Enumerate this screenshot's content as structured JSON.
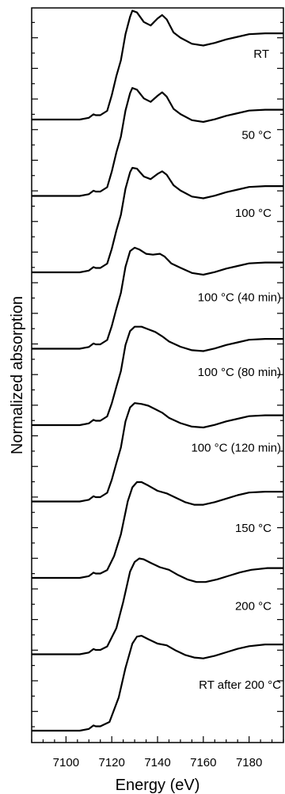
{
  "chart_data": {
    "type": "line",
    "xlabel": "Energy (eV)",
    "ylabel": "Normalized absorption",
    "xlim": [
      7085,
      7195
    ],
    "x_ticks": [
      7100,
      7120,
      7140,
      7160,
      7180
    ],
    "x_minor_step": 5,
    "vertical_offset": true,
    "grid": false,
    "legend": "none (labels placed on curves)",
    "line_color": "#000000",
    "series": [
      {
        "name": "RT",
        "points": [
          [
            7085,
            0.0
          ],
          [
            7106,
            0.0
          ],
          [
            7110,
            0.02
          ],
          [
            7112,
            0.06
          ],
          [
            7113,
            0.05
          ],
          [
            7115,
            0.05
          ],
          [
            7118,
            0.1
          ],
          [
            7120,
            0.28
          ],
          [
            7122,
            0.5
          ],
          [
            7124,
            0.68
          ],
          [
            7126,
            0.98
          ],
          [
            7128,
            1.18
          ],
          [
            7129,
            1.25
          ],
          [
            7131,
            1.23
          ],
          [
            7134,
            1.12
          ],
          [
            7137,
            1.08
          ],
          [
            7140,
            1.16
          ],
          [
            7142,
            1.2
          ],
          [
            7144,
            1.15
          ],
          [
            7147,
            1.0
          ],
          [
            7150,
            0.94
          ],
          [
            7155,
            0.87
          ],
          [
            7160,
            0.85
          ],
          [
            7165,
            0.88
          ],
          [
            7170,
            0.92
          ],
          [
            7175,
            0.95
          ],
          [
            7180,
            0.98
          ],
          [
            7187,
            0.99
          ],
          [
            7195,
            0.99
          ]
        ]
      },
      {
        "name": "50 °C",
        "points": [
          [
            7085,
            0.0
          ],
          [
            7106,
            0.0
          ],
          [
            7110,
            0.02
          ],
          [
            7112,
            0.06
          ],
          [
            7113,
            0.05
          ],
          [
            7115,
            0.05
          ],
          [
            7118,
            0.1
          ],
          [
            7120,
            0.28
          ],
          [
            7122,
            0.5
          ],
          [
            7124,
            0.68
          ],
          [
            7126,
            0.98
          ],
          [
            7128,
            1.18
          ],
          [
            7129,
            1.24
          ],
          [
            7131,
            1.22
          ],
          [
            7134,
            1.12
          ],
          [
            7137,
            1.08
          ],
          [
            7140,
            1.15
          ],
          [
            7142,
            1.19
          ],
          [
            7144,
            1.14
          ],
          [
            7147,
            1.0
          ],
          [
            7150,
            0.94
          ],
          [
            7155,
            0.87
          ],
          [
            7160,
            0.85
          ],
          [
            7165,
            0.88
          ],
          [
            7170,
            0.92
          ],
          [
            7175,
            0.95
          ],
          [
            7180,
            0.98
          ],
          [
            7187,
            0.99
          ],
          [
            7195,
            0.99
          ]
        ]
      },
      {
        "name": "100 °C",
        "points": [
          [
            7085,
            0.0
          ],
          [
            7106,
            0.0
          ],
          [
            7110,
            0.02
          ],
          [
            7112,
            0.06
          ],
          [
            7113,
            0.05
          ],
          [
            7115,
            0.05
          ],
          [
            7118,
            0.1
          ],
          [
            7120,
            0.27
          ],
          [
            7122,
            0.48
          ],
          [
            7124,
            0.66
          ],
          [
            7126,
            0.96
          ],
          [
            7128,
            1.15
          ],
          [
            7129,
            1.2
          ],
          [
            7131,
            1.19
          ],
          [
            7134,
            1.1
          ],
          [
            7137,
            1.07
          ],
          [
            7140,
            1.13
          ],
          [
            7142,
            1.16
          ],
          [
            7144,
            1.12
          ],
          [
            7147,
            1.0
          ],
          [
            7150,
            0.94
          ],
          [
            7155,
            0.87
          ],
          [
            7160,
            0.85
          ],
          [
            7165,
            0.88
          ],
          [
            7170,
            0.92
          ],
          [
            7175,
            0.95
          ],
          [
            7180,
            0.98
          ],
          [
            7187,
            0.99
          ],
          [
            7195,
            0.99
          ]
        ]
      },
      {
        "name": "100 °C (40 min)",
        "points": [
          [
            7085,
            0.0
          ],
          [
            7106,
            0.0
          ],
          [
            7110,
            0.02
          ],
          [
            7112,
            0.06
          ],
          [
            7113,
            0.05
          ],
          [
            7115,
            0.05
          ],
          [
            7118,
            0.1
          ],
          [
            7120,
            0.26
          ],
          [
            7122,
            0.46
          ],
          [
            7124,
            0.64
          ],
          [
            7126,
            0.94
          ],
          [
            7128,
            1.12
          ],
          [
            7130,
            1.16
          ],
          [
            7132,
            1.14
          ],
          [
            7135,
            1.09
          ],
          [
            7138,
            1.08
          ],
          [
            7141,
            1.09
          ],
          [
            7143,
            1.06
          ],
          [
            7146,
            0.98
          ],
          [
            7150,
            0.93
          ],
          [
            7155,
            0.87
          ],
          [
            7160,
            0.85
          ],
          [
            7165,
            0.88
          ],
          [
            7170,
            0.92
          ],
          [
            7175,
            0.95
          ],
          [
            7180,
            0.98
          ],
          [
            7187,
            0.99
          ],
          [
            7195,
            0.99
          ]
        ]
      },
      {
        "name": "100 °C (80 min)",
        "points": [
          [
            7085,
            0.0
          ],
          [
            7106,
            0.0
          ],
          [
            7110,
            0.02
          ],
          [
            7112,
            0.06
          ],
          [
            7113,
            0.05
          ],
          [
            7115,
            0.05
          ],
          [
            7118,
            0.1
          ],
          [
            7120,
            0.25
          ],
          [
            7122,
            0.44
          ],
          [
            7124,
            0.62
          ],
          [
            7126,
            0.92
          ],
          [
            7128,
            1.08
          ],
          [
            7130,
            1.13
          ],
          [
            7133,
            1.13
          ],
          [
            7136,
            1.1
          ],
          [
            7139,
            1.07
          ],
          [
            7142,
            1.02
          ],
          [
            7145,
            0.96
          ],
          [
            7150,
            0.9
          ],
          [
            7155,
            0.86
          ],
          [
            7160,
            0.85
          ],
          [
            7165,
            0.88
          ],
          [
            7170,
            0.92
          ],
          [
            7175,
            0.95
          ],
          [
            7180,
            0.98
          ],
          [
            7187,
            0.99
          ],
          [
            7195,
            0.99
          ]
        ]
      },
      {
        "name": "100 °C (120 min)",
        "points": [
          [
            7085,
            0.0
          ],
          [
            7106,
            0.0
          ],
          [
            7110,
            0.02
          ],
          [
            7112,
            0.06
          ],
          [
            7113,
            0.05
          ],
          [
            7115,
            0.05
          ],
          [
            7118,
            0.1
          ],
          [
            7120,
            0.25
          ],
          [
            7122,
            0.44
          ],
          [
            7124,
            0.62
          ],
          [
            7126,
            0.92
          ],
          [
            7128,
            1.08
          ],
          [
            7130,
            1.13
          ],
          [
            7133,
            1.12
          ],
          [
            7136,
            1.1
          ],
          [
            7139,
            1.06
          ],
          [
            7142,
            1.02
          ],
          [
            7145,
            0.96
          ],
          [
            7150,
            0.9
          ],
          [
            7155,
            0.86
          ],
          [
            7160,
            0.85
          ],
          [
            7165,
            0.88
          ],
          [
            7170,
            0.92
          ],
          [
            7175,
            0.95
          ],
          [
            7180,
            0.98
          ],
          [
            7187,
            0.99
          ],
          [
            7195,
            0.99
          ]
        ]
      },
      {
        "name": "150 °C",
        "points": [
          [
            7085,
            0.0
          ],
          [
            7106,
            0.0
          ],
          [
            7110,
            0.02
          ],
          [
            7112,
            0.06
          ],
          [
            7113,
            0.05
          ],
          [
            7115,
            0.05
          ],
          [
            7118,
            0.09
          ],
          [
            7121,
            0.25
          ],
          [
            7124,
            0.5
          ],
          [
            7127,
            0.88
          ],
          [
            7129,
            1.04
          ],
          [
            7131,
            1.1
          ],
          [
            7133,
            1.1
          ],
          [
            7136,
            1.06
          ],
          [
            7140,
            1.0
          ],
          [
            7144,
            0.97
          ],
          [
            7148,
            0.92
          ],
          [
            7152,
            0.87
          ],
          [
            7156,
            0.84
          ],
          [
            7160,
            0.84
          ],
          [
            7165,
            0.87
          ],
          [
            7170,
            0.91
          ],
          [
            7175,
            0.95
          ],
          [
            7180,
            0.98
          ],
          [
            7187,
            0.99
          ],
          [
            7195,
            0.99
          ]
        ]
      },
      {
        "name": "200 °C",
        "points": [
          [
            7085,
            0.0
          ],
          [
            7106,
            0.0
          ],
          [
            7110,
            0.02
          ],
          [
            7112,
            0.06
          ],
          [
            7113,
            0.05
          ],
          [
            7115,
            0.05
          ],
          [
            7118,
            0.09
          ],
          [
            7122,
            0.3
          ],
          [
            7125,
            0.6
          ],
          [
            7128,
            0.95
          ],
          [
            7130,
            1.06
          ],
          [
            7132,
            1.1
          ],
          [
            7134,
            1.09
          ],
          [
            7137,
            1.05
          ],
          [
            7141,
            1.0
          ],
          [
            7145,
            0.97
          ],
          [
            7149,
            0.91
          ],
          [
            7153,
            0.86
          ],
          [
            7157,
            0.83
          ],
          [
            7161,
            0.83
          ],
          [
            7166,
            0.86
          ],
          [
            7171,
            0.9
          ],
          [
            7176,
            0.94
          ],
          [
            7181,
            0.97
          ],
          [
            7188,
            0.99
          ],
          [
            7195,
            0.99
          ]
        ]
      },
      {
        "name": "RT after 200 °C",
        "points": [
          [
            7085,
            0.0
          ],
          [
            7106,
            0.0
          ],
          [
            7110,
            0.02
          ],
          [
            7112,
            0.06
          ],
          [
            7113,
            0.05
          ],
          [
            7115,
            0.05
          ],
          [
            7119,
            0.1
          ],
          [
            7123,
            0.38
          ],
          [
            7126,
            0.72
          ],
          [
            7129,
            1.0
          ],
          [
            7131,
            1.08
          ],
          [
            7133,
            1.09
          ],
          [
            7136,
            1.05
          ],
          [
            7140,
            1.0
          ],
          [
            7144,
            0.98
          ],
          [
            7148,
            0.92
          ],
          [
            7152,
            0.87
          ],
          [
            7156,
            0.84
          ],
          [
            7160,
            0.83
          ],
          [
            7165,
            0.86
          ],
          [
            7170,
            0.9
          ],
          [
            7175,
            0.94
          ],
          [
            7180,
            0.97
          ],
          [
            7187,
            0.99
          ],
          [
            7195,
            0.99
          ]
        ]
      }
    ]
  }
}
